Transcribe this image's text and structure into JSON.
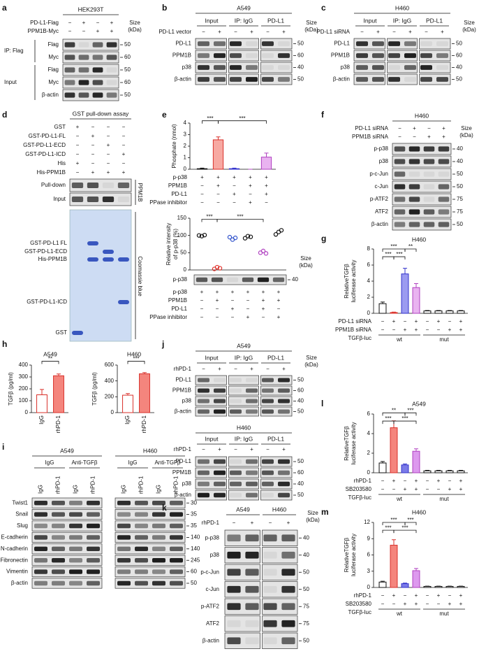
{
  "a": {
    "label": "a",
    "title": "HEK293T",
    "conditions": [
      {
        "name": "PD-L1-Flag",
        "signs": [
          "−",
          "+",
          "−",
          "+"
        ]
      },
      {
        "name": "PPM1B-Myc",
        "signs": [
          "−",
          "−",
          "+",
          "+"
        ]
      }
    ],
    "row_groups": [
      "IP: Flag",
      "Input"
    ],
    "blots": [
      {
        "name": "Flag",
        "size": 50
      },
      {
        "name": "Myc",
        "size": 60
      },
      {
        "name": "Flag",
        "size": 50
      },
      {
        "name": "Myc",
        "size": 60
      },
      {
        "name": "β-actin",
        "size": 50
      }
    ],
    "size_header": [
      "Size",
      "(kDa)"
    ]
  },
  "b": {
    "label": "b",
    "title": "A549",
    "headers": [
      "Input",
      "IP: IgG",
      "PD-L1"
    ],
    "conditions": [
      {
        "name": "PD-L1 vector",
        "signs": [
          "−",
          "+",
          "−",
          "+",
          "−",
          "+"
        ]
      }
    ],
    "blots": [
      {
        "name": "PD-L1",
        "size": 50
      },
      {
        "name": "PPM1B",
        "size": 60
      },
      {
        "name": "p38",
        "size": 40
      },
      {
        "name": "β-actin",
        "size": 50
      }
    ],
    "size_header": [
      "Size",
      "(kDa)"
    ]
  },
  "c": {
    "label": "c",
    "title": "H460",
    "headers": [
      "Input",
      "IP: IgG",
      "PD-L1"
    ],
    "conditions": [
      {
        "name": "PD-L1 siRNA",
        "signs": [
          "−",
          "+",
          "−",
          "+",
          "−",
          "+"
        ]
      }
    ],
    "blots": [
      {
        "name": "PD-L1",
        "size": 50
      },
      {
        "name": "PPM1B",
        "size": 60
      },
      {
        "name": "p38",
        "size": 40
      },
      {
        "name": "β-actin",
        "size": 50
      }
    ],
    "size_header": [
      "Size",
      "(kDa)"
    ]
  },
  "d": {
    "label": "d",
    "title": "GST pull-down assay",
    "conditions": [
      {
        "name": "GST",
        "signs": [
          "+",
          "−",
          "−",
          "−"
        ]
      },
      {
        "name": "GST-PD-L1-FL",
        "signs": [
          "−",
          "+",
          "−",
          "−"
        ]
      },
      {
        "name": "GST-PD-L1-ECD",
        "signs": [
          "−",
          "−",
          "+",
          "−"
        ]
      },
      {
        "name": "GST-PD-L1-ICD",
        "signs": [
          "−",
          "−",
          "−",
          "+"
        ]
      },
      {
        "name": "His",
        "signs": [
          "+",
          "−",
          "−",
          "−"
        ]
      },
      {
        "name": "His-PPM1B",
        "signs": [
          "−",
          "+",
          "+",
          "+"
        ]
      }
    ],
    "blots": [
      {
        "name": "Pull-down"
      },
      {
        "name": "Input"
      }
    ],
    "side_label": "PPM1B",
    "gel": {
      "labels": [
        "GST-PD-L1 FL",
        "GST-PD-L1-ECD",
        "His-PPM1B",
        "GST-PD-L1-ICD",
        "GST"
      ],
      "side_label": "Coomassie blue"
    }
  },
  "e": {
    "label": "e",
    "bar": {
      "type": "bar",
      "ylabel": [
        "Phosphate (nmol)"
      ],
      "ylim": [
        0,
        4
      ],
      "yticks": [
        0,
        1,
        2,
        3,
        4
      ],
      "values": [
        0.05,
        2.55,
        0.05,
        0,
        1.05
      ],
      "errors": [
        0.05,
        0.25,
        0.05,
        0,
        0.35
      ],
      "colors": [
        "#ffffff",
        "#f7a9a2",
        "#9a9af0",
        "#e9b3f0",
        "#e9b3f0"
      ],
      "edge_colors": [
        "#111111",
        "#d9302a",
        "#3333cc",
        "#b040c0",
        "#b040c0"
      ],
      "significance": [
        "***",
        "***"
      ],
      "conditions": [
        {
          "name": "p-p38",
          "signs": [
            "+",
            "+",
            "+",
            "+",
            "+"
          ]
        },
        {
          "name": "PPM1B",
          "signs": [
            "−",
            "+",
            "−",
            "+",
            "+"
          ]
        },
        {
          "name": "PD-L1",
          "signs": [
            "−",
            "−",
            "+",
            "−",
            "+"
          ]
        },
        {
          "name": "PPase inhibitor",
          "signs": [
            "−",
            "−",
            "−",
            "+",
            "−"
          ]
        }
      ]
    },
    "dot": {
      "type": "dot",
      "ylabel": [
        "Relative intensity",
        "of p-p38 (%)"
      ],
      "ylim": [
        0,
        150
      ],
      "yticks": [
        0,
        50,
        100,
        150
      ],
      "groups": [
        {
          "color": "#111111",
          "values": [
            100,
            98,
            101
          ]
        },
        {
          "color": "#e0302a",
          "values": [
            3,
            8,
            5
          ]
        },
        {
          "color": "#3355cc",
          "values": [
            95,
            88,
            93
          ]
        },
        {
          "color": "#111111",
          "values": [
            92,
            98,
            96
          ]
        },
        {
          "color": "#b040c0",
          "values": [
            50,
            55,
            48
          ]
        },
        {
          "color": "#111111",
          "values": [
            103,
            110,
            115
          ]
        }
      ],
      "significance": [
        "***",
        "***"
      ]
    },
    "blot": {
      "blots": [
        {
          "name": "p-p38",
          "size": 40
        }
      ],
      "size_header": [
        "Size",
        "(kDa)"
      ],
      "conditions": [
        {
          "name": "p-p38",
          "signs": [
            "+",
            "+",
            "+",
            "+",
            "+",
            "+"
          ]
        },
        {
          "name": "PPM1B",
          "signs": [
            "−",
            "+",
            "−",
            "−",
            "+",
            "+"
          ]
        },
        {
          "name": "PD-L1",
          "signs": [
            "−",
            "−",
            "+",
            "−",
            "+",
            "−"
          ]
        },
        {
          "name": "PPase inhibitor",
          "signs": [
            "−",
            "−",
            "−",
            "+",
            "−",
            "+"
          ]
        }
      ]
    }
  },
  "f": {
    "label": "f",
    "title": "H460",
    "conditions": [
      {
        "name": "PD-L1 siRNA",
        "signs": [
          "−",
          "+",
          "−",
          "+"
        ]
      },
      {
        "name": "PPM1B siRNA",
        "signs": [
          "−",
          "−",
          "+",
          "+"
        ]
      }
    ],
    "blots": [
      {
        "name": "p-p38",
        "size": 40
      },
      {
        "name": "p38",
        "size": 40
      },
      {
        "name": "p-c-Jun",
        "size": 50
      },
      {
        "name": "c-Jun",
        "size": 50
      },
      {
        "name": "p-ATF2",
        "size": 75
      },
      {
        "name": "ATF2",
        "size": 75
      },
      {
        "name": "β-actin",
        "size": 50
      }
    ],
    "size_header": [
      "Size",
      "(kDa)"
    ]
  },
  "g": {
    "label": "g",
    "type": "bar",
    "title": "H460",
    "ylabel": [
      "RelativeTGFβ",
      "luciferase activity"
    ],
    "ylim": [
      0,
      8
    ],
    "yticks": [
      0,
      2,
      4,
      6,
      8
    ],
    "values": [
      1.2,
      0.1,
      4.9,
      3.2,
      0.3,
      0.3,
      0.3,
      0.3
    ],
    "errors": [
      0.2,
      0.05,
      0.7,
      0.5,
      0.05,
      0.05,
      0.05,
      0.05
    ],
    "colors": [
      "#ffffff",
      "#f7a9a2",
      "#9a9af0",
      "#e9b3f0",
      "#ffffff",
      "#ffffff",
      "#ffffff",
      "#ffffff"
    ],
    "edge_colors": [
      "#111111",
      "#d9302a",
      "#3333cc",
      "#b040c0",
      "#111111",
      "#111111",
      "#111111",
      "#111111"
    ],
    "significance": [
      "***",
      "**",
      "***",
      "***"
    ],
    "conditions": [
      {
        "name": "PD-L1 siRNA",
        "signs": [
          "−",
          "+",
          "−",
          "+",
          "−",
          "+",
          "−",
          "+"
        ]
      },
      {
        "name": "PPM1B siRNA",
        "signs": [
          "−",
          "−",
          "+",
          "+",
          "−",
          "−",
          "+",
          "+"
        ]
      }
    ],
    "xlabel": "TGFβ-luc",
    "groups": [
      "wt",
      "mut"
    ]
  },
  "h": {
    "label": "h",
    "charts": [
      {
        "type": "bar",
        "title": "A549",
        "ylabel": [
          "TGFβ (pg/ml)"
        ],
        "ylim": [
          0,
          400
        ],
        "yticks": [
          0,
          100,
          200,
          300,
          400
        ],
        "categories": [
          "IgG",
          "rhPD-1"
        ],
        "values": [
          150,
          310
        ],
        "errors": [
          45,
          15
        ],
        "colors": [
          "#ffffff",
          "#f4857d"
        ],
        "edge_colors": [
          "#d9302a",
          "#d9302a"
        ],
        "significance": [
          "**"
        ]
      },
      {
        "type": "bar",
        "title": "H460",
        "ylabel": [
          "TGFβ (pg/ml)"
        ],
        "ylim": [
          0,
          600
        ],
        "yticks": [
          0,
          200,
          400,
          600
        ],
        "categories": [
          "IgG",
          "rhPD-1"
        ],
        "values": [
          220,
          490
        ],
        "errors": [
          20,
          15
        ],
        "colors": [
          "#ffffff",
          "#f4857d"
        ],
        "edge_colors": [
          "#d9302a",
          "#d9302a"
        ],
        "significance": [
          "***"
        ]
      }
    ]
  },
  "i": {
    "label": "i",
    "blocks": [
      {
        "title": "A549",
        "groups": [
          "IgG",
          "Anti-TGFβ"
        ],
        "lanes": [
          "IgG",
          "rhPD-1",
          "IgG",
          "rhPD-1"
        ]
      },
      {
        "title": "H460",
        "groups": [
          "IgG",
          "Anti-TGFβ"
        ],
        "lanes": [
          "IgG",
          "rhPD-1",
          "IgG",
          "rhPD-1"
        ]
      }
    ],
    "blots": [
      {
        "name": "Twist1",
        "size": 30
      },
      {
        "name": "Snail",
        "size": 35
      },
      {
        "name": "Slug",
        "size": 35
      },
      {
        "name": "E-cadherin",
        "size": 140
      },
      {
        "name": "N-cadherin",
        "size": 140
      },
      {
        "name": "Fibronectin",
        "size": 245
      },
      {
        "name": "Vimentin",
        "size": 60
      },
      {
        "name": "β-actin",
        "size": 50
      }
    ]
  },
  "j": {
    "label": "j",
    "parts": [
      {
        "title": "A549",
        "headers": [
          "Input",
          "IP: IgG",
          "PD-L1"
        ],
        "conditions": [
          {
            "name": "rhPD-1",
            "signs": [
              "−",
              "+",
              "−",
              "+",
              "−",
              "+"
            ]
          }
        ],
        "blots": [
          {
            "name": "PD-L1",
            "size": 50
          },
          {
            "name": "PPM1B",
            "size": 60
          },
          {
            "name": "p38",
            "size": 40
          },
          {
            "name": "β-actin",
            "size": 50
          }
        ],
        "size_header": [
          "Size",
          "(kDa)"
        ]
      },
      {
        "title": "H460",
        "headers": [
          "Input",
          "IP: IgG",
          "PD-L1"
        ],
        "conditions": [
          {
            "name": "rhPD-1",
            "signs": [
              "−",
              "+",
              "−",
              "+",
              "−",
              "+"
            ]
          }
        ],
        "blots": [
          {
            "name": "PD-L1",
            "size": 50
          },
          {
            "name": "PPM1B",
            "size": 60
          },
          {
            "name": "p38",
            "size": 40
          },
          {
            "name": "β-actin",
            "size": 50
          }
        ]
      }
    ]
  },
  "k": {
    "label": "k",
    "headers": [
      "A549",
      "H460"
    ],
    "conditions": [
      {
        "name": "rhPD-1",
        "signs": [
          "−",
          "+",
          "−",
          "+"
        ]
      }
    ],
    "blots": [
      {
        "name": "p-p38",
        "size": 40
      },
      {
        "name": "p38",
        "size": 40
      },
      {
        "name": "p-c-Jun",
        "size": 50
      },
      {
        "name": "c-Jun",
        "size": 50
      },
      {
        "name": "p-ATF2",
        "size": 75
      },
      {
        "name": "ATF2",
        "size": 75
      },
      {
        "name": "β-actin",
        "size": 50
      }
    ],
    "size_header": [
      "Size",
      "(kDa)"
    ]
  },
  "l": {
    "label": "l",
    "type": "bar",
    "title": "A549",
    "ylabel": [
      "RelativeTGFβ",
      "luciferase activity"
    ],
    "ylim": [
      0,
      6
    ],
    "yticks": [
      0,
      2,
      4,
      6
    ],
    "values": [
      1.0,
      4.6,
      0.8,
      2.2,
      0.2,
      0.2,
      0.2,
      0.2
    ],
    "errors": [
      0.15,
      0.7,
      0.1,
      0.25,
      0.05,
      0.05,
      0.05,
      0.05
    ],
    "colors": [
      "#ffffff",
      "#f4857d",
      "#7b7be8",
      "#dd99ee",
      "#ffffff",
      "#ffffff",
      "#ffffff",
      "#ffffff"
    ],
    "edge_colors": [
      "#111111",
      "#d9302a",
      "#3333cc",
      "#b040c0",
      "#111111",
      "#111111",
      "#111111",
      "#111111"
    ],
    "significance": [
      "**",
      "***",
      "***",
      "***"
    ],
    "conditions": [
      {
        "name": "rhPD-1",
        "signs": [
          "−",
          "+",
          "−",
          "+",
          "−",
          "+",
          "−",
          "+"
        ]
      },
      {
        "name": "SB203580",
        "signs": [
          "−",
          "−",
          "+",
          "+",
          "−",
          "−",
          "+",
          "+"
        ]
      }
    ],
    "xlabel": "TGFβ-luc",
    "groups": [
      "wt",
      "mut"
    ]
  },
  "m": {
    "label": "m",
    "type": "bar",
    "title": "H460",
    "ylabel": [
      "RelativeTGFβ",
      "luciferase activity"
    ],
    "ylim": [
      0,
      12
    ],
    "yticks": [
      0,
      3,
      6,
      9,
      12
    ],
    "values": [
      1.0,
      7.8,
      0.7,
      3.1,
      0.2,
      0.2,
      0.2,
      0.2
    ],
    "errors": [
      0.15,
      1.0,
      0.1,
      0.4,
      0.05,
      0.05,
      0.05,
      0.05
    ],
    "colors": [
      "#ffffff",
      "#f4857d",
      "#7b7be8",
      "#dd99ee",
      "#ffffff",
      "#ffffff",
      "#ffffff",
      "#ffffff"
    ],
    "edge_colors": [
      "#111111",
      "#d9302a",
      "#3333cc",
      "#b040c0",
      "#111111",
      "#111111",
      "#111111",
      "#111111"
    ],
    "significance": [
      "***",
      "***",
      "***",
      "***"
    ],
    "conditions": [
      {
        "name": "rhPD-1",
        "signs": [
          "−",
          "+",
          "−",
          "+",
          "−",
          "+",
          "−",
          "+"
        ]
      },
      {
        "name": "SB203580",
        "signs": [
          "−",
          "−",
          "+",
          "+",
          "−",
          "−",
          "+",
          "+"
        ]
      }
    ],
    "xlabel": "TGFβ-luc",
    "groups": [
      "wt",
      "mut"
    ]
  }
}
